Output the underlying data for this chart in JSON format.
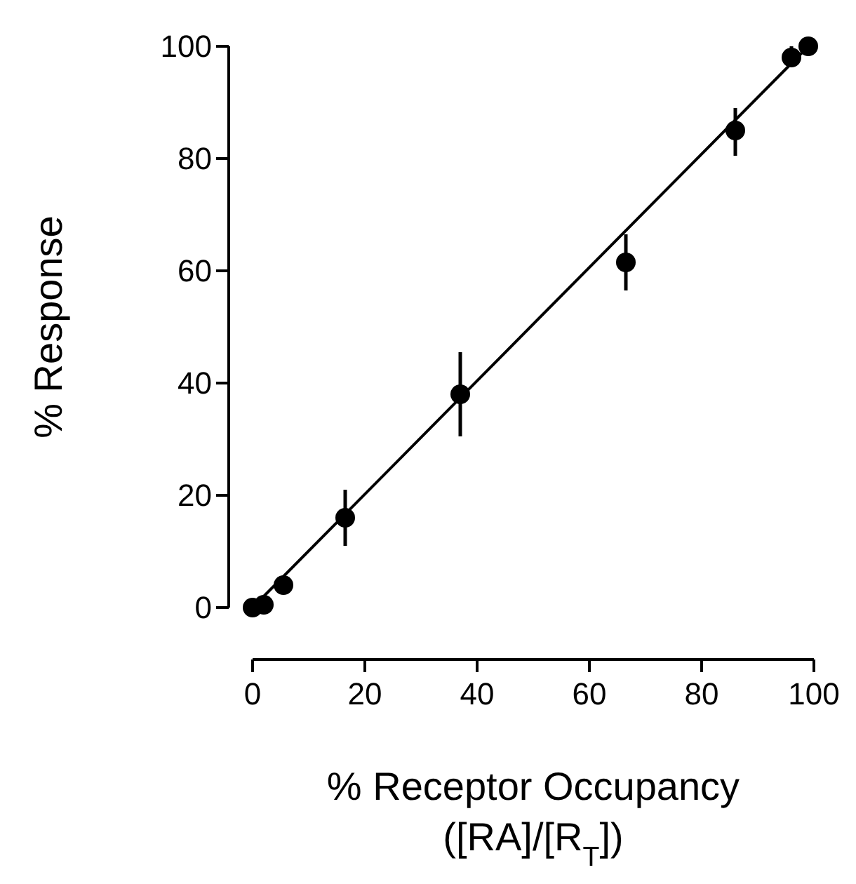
{
  "chart_data": {
    "type": "scatter",
    "xlabel": "% Receptor Occupancy\n([RA]/[R$_{T}$])",
    "ylabel": "% Response",
    "xlim": [
      0,
      100
    ],
    "ylim": [
      0,
      100
    ],
    "xticks": [
      0,
      20,
      40,
      60,
      80,
      100
    ],
    "yticks": [
      0,
      20,
      40,
      60,
      80,
      100
    ],
    "grid": false,
    "series": [
      {
        "color": "#000000",
        "marker": "circle",
        "x": [
          0,
          2,
          5.5,
          16.5,
          37,
          66.5,
          86,
          96,
          99
        ],
        "values": [
          0,
          0.5,
          4,
          16,
          38,
          61.5,
          85,
          98,
          100
        ],
        "errors": [
          null,
          null,
          null,
          [
            11,
            21
          ],
          [
            30.5,
            45.5
          ],
          [
            56.5,
            66.5
          ],
          [
            80.5,
            89
          ],
          [
            97,
            100
          ],
          null
        ]
      },
      {
        "type": "line",
        "color": "#000000",
        "x": [
          0,
          99
        ],
        "values": [
          0,
          100
        ],
        "line_style": "solid"
      }
    ]
  }
}
